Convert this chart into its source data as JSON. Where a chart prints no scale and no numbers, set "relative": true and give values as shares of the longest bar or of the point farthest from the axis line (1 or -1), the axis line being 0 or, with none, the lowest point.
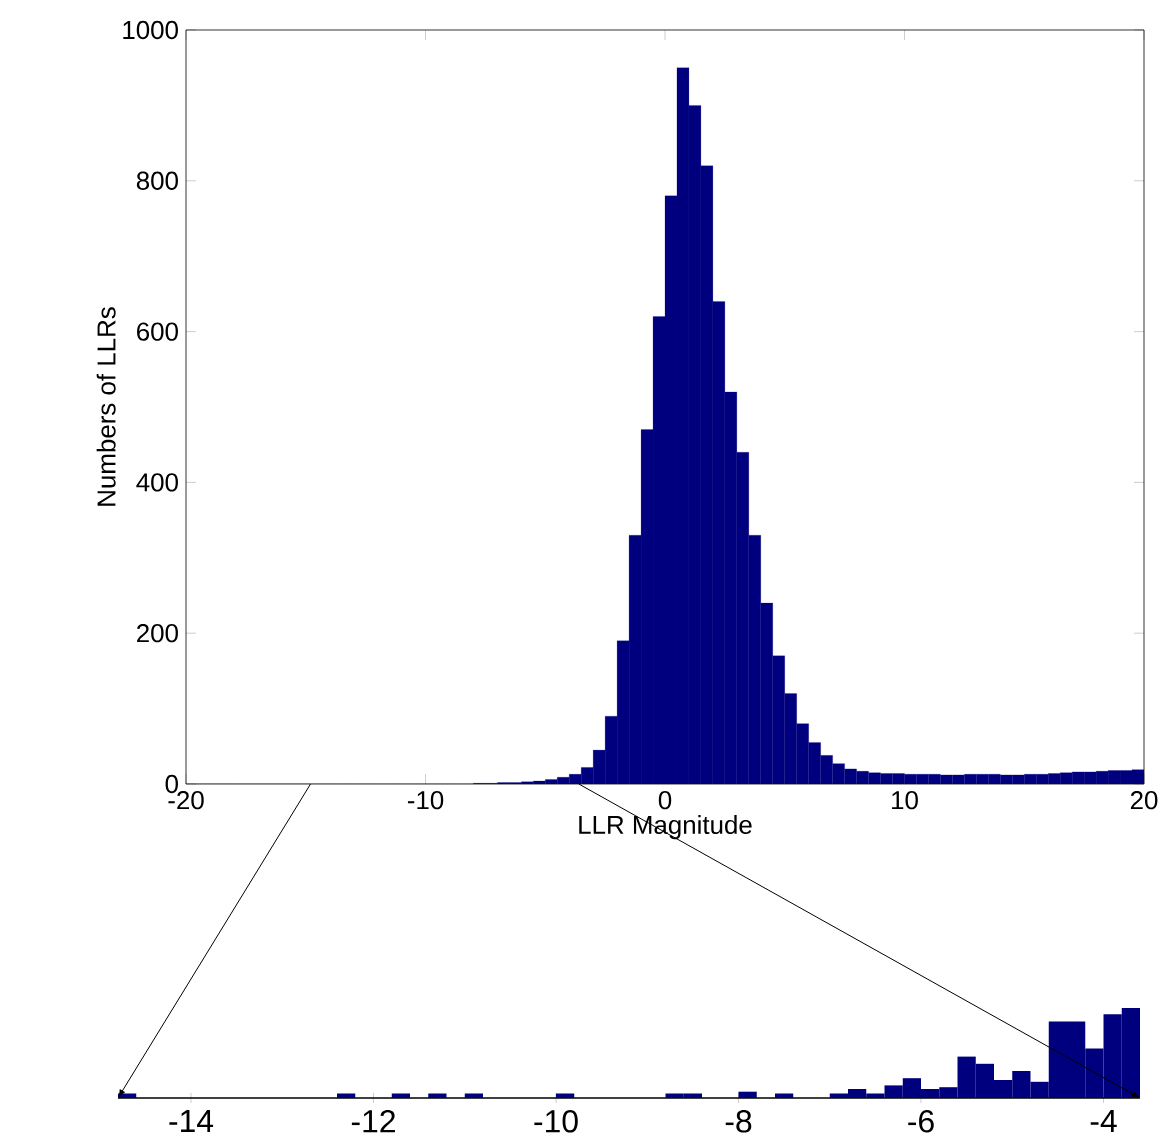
{
  "chart_data": [
    {
      "type": "histogram",
      "xlabel": "LLR Magnitude",
      "ylabel": "Numbers of LLRs",
      "color": "#00007f",
      "bins": [
        -20,
        -19.5,
        -19,
        -18.5,
        -18,
        -17.5,
        -17,
        -16.5,
        -16,
        -15.5,
        -15,
        -14.5,
        -14,
        -13.5,
        -13,
        -12.5,
        -12,
        -11.5,
        -11,
        -10.5,
        -10,
        -9.5,
        -9,
        -8.5,
        -8,
        -7.5,
        -7,
        -6.5,
        -6,
        -5.5,
        -5,
        -4.5,
        -4,
        -3.5,
        -3,
        -2.5,
        -2,
        -1.5,
        -1,
        -0.5,
        0,
        0.5,
        1,
        1.5,
        2,
        2.5,
        3,
        3.5,
        4,
        4.5,
        5,
        5.5,
        6,
        6.5,
        7,
        7.5,
        8,
        8.5,
        9,
        9.5,
        10,
        10.5,
        11,
        11.5,
        12,
        12.5,
        13,
        13.5,
        14,
        14.5,
        15,
        15.5,
        16,
        16.5,
        17,
        17.5,
        18,
        18.5,
        19,
        19.5,
        20
      ],
      "values": [
        0,
        0,
        0,
        0,
        0,
        0,
        0,
        0,
        0,
        0,
        0,
        0,
        0,
        0,
        0,
        0,
        0,
        0,
        0,
        0,
        0,
        0,
        0,
        0,
        1,
        1,
        2,
        2,
        3,
        4,
        6,
        9,
        13,
        22,
        45,
        90,
        190,
        330,
        470,
        620,
        780,
        950,
        900,
        820,
        640,
        520,
        440,
        330,
        240,
        170,
        120,
        80,
        55,
        38,
        27,
        20,
        17,
        15,
        14,
        14,
        13,
        13,
        13,
        12,
        12,
        13,
        13,
        13,
        12,
        12,
        13,
        13,
        14,
        15,
        16,
        16,
        17,
        18,
        18,
        19
      ],
      "xlim": [
        -20,
        20
      ],
      "ylim": [
        0,
        1000
      ],
      "xticks": [
        -20,
        -10,
        0,
        10,
        20
      ],
      "yticks": [
        0,
        200,
        400,
        600,
        800,
        1000
      ]
    },
    {
      "type": "bar",
      "relative": true,
      "color": "#00007f",
      "x": [
        -14.7,
        -12.3,
        -11.7,
        -11.3,
        -10.9,
        -9.9,
        -8.7,
        -8.5,
        -7.9,
        -7.5,
        -6.9,
        -6.7,
        -6.5,
        -6.3,
        -6.1,
        -5.9,
        -5.7,
        -5.5,
        -5.3,
        -5.1,
        -4.9,
        -4.7,
        -4.5,
        -4.3,
        -4.1,
        -3.9,
        -3.7
      ],
      "values": [
        0.05,
        0.05,
        0.05,
        0.05,
        0.05,
        0.05,
        0.05,
        0.05,
        0.07,
        0.05,
        0.05,
        0.1,
        0.05,
        0.14,
        0.22,
        0.1,
        0.12,
        0.46,
        0.38,
        0.2,
        0.3,
        0.18,
        0.85,
        0.85,
        0.55,
        0.93,
        1
      ],
      "xlim": [
        -14.8,
        -3.6
      ],
      "xticks": [
        -14,
        -12,
        -10,
        -8,
        -6,
        -4
      ]
    }
  ]
}
